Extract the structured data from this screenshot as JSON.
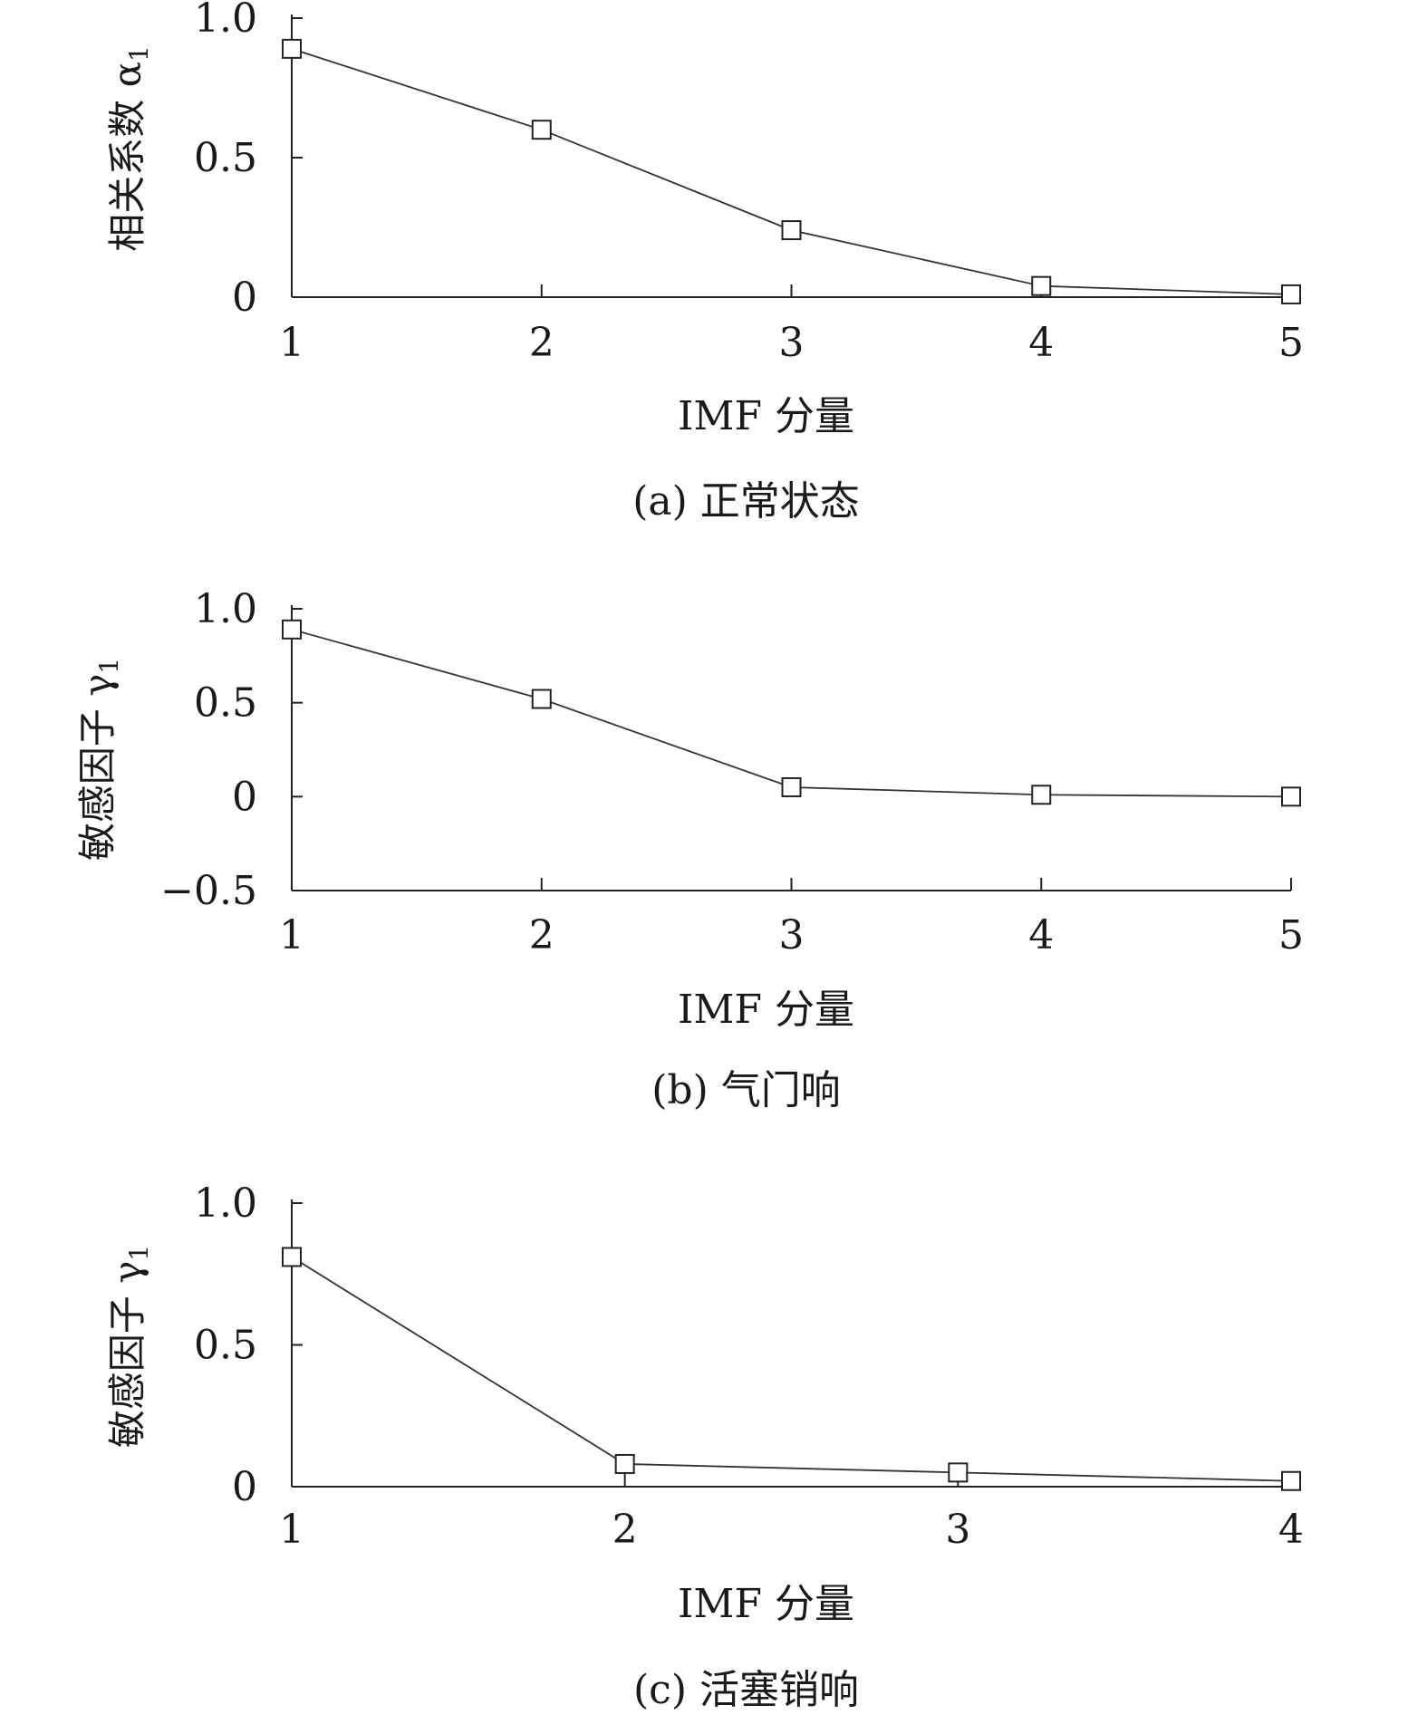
{
  "chart_data": [
    {
      "type": "line",
      "caption": "(a) 正常状态",
      "xlabel": "IMF 分量",
      "ylabel": "相关系数 α",
      "ylabel_subscript": "1",
      "x": [
        1,
        2,
        3,
        4,
        5
      ],
      "series": [
        {
          "values": [
            0.89,
            0.6,
            0.24,
            0.04,
            0.01
          ]
        }
      ],
      "xlim": [
        1,
        5
      ],
      "ylim": [
        0,
        1.0
      ],
      "xticks": [
        "1",
        "2",
        "3",
        "4",
        "5"
      ],
      "yticks": [
        {
          "value": 0,
          "label": "0"
        },
        {
          "value": 0.5,
          "label": "0.5"
        },
        {
          "value": 1.0,
          "label": "1.0"
        }
      ],
      "marker": "square",
      "grid": false
    },
    {
      "type": "line",
      "caption": "(b) 气门响",
      "xlabel": "IMF 分量",
      "ylabel": "敏感因子 γ",
      "ylabel_subscript": "1",
      "x": [
        1,
        2,
        3,
        4,
        5
      ],
      "series": [
        {
          "values": [
            0.89,
            0.52,
            0.05,
            0.01,
            0.0
          ]
        }
      ],
      "xlim": [
        1,
        5
      ],
      "ylim": [
        -0.5,
        1.0
      ],
      "xticks": [
        "1",
        "2",
        "3",
        "4",
        "5"
      ],
      "yticks": [
        {
          "value": -0.5,
          "label": "−0.5"
        },
        {
          "value": 0,
          "label": "0"
        },
        {
          "value": 0.5,
          "label": "0.5"
        },
        {
          "value": 1.0,
          "label": "1.0"
        }
      ],
      "marker": "square",
      "grid": false
    },
    {
      "type": "line",
      "caption": "(c) 活塞销响",
      "xlabel": "IMF 分量",
      "ylabel": "敏感因子 γ",
      "ylabel_subscript": "1",
      "x": [
        1,
        2,
        3,
        4
      ],
      "series": [
        {
          "values": [
            0.81,
            0.08,
            0.05,
            0.02
          ]
        }
      ],
      "xlim": [
        1,
        4
      ],
      "ylim": [
        0,
        1.0
      ],
      "xticks": [
        "1",
        "2",
        "3",
        "4"
      ],
      "yticks": [
        {
          "value": 0,
          "label": "0"
        },
        {
          "value": 0.5,
          "label": "0.5"
        },
        {
          "value": 1.0,
          "label": "1.0"
        }
      ],
      "marker": "square",
      "grid": false
    }
  ]
}
